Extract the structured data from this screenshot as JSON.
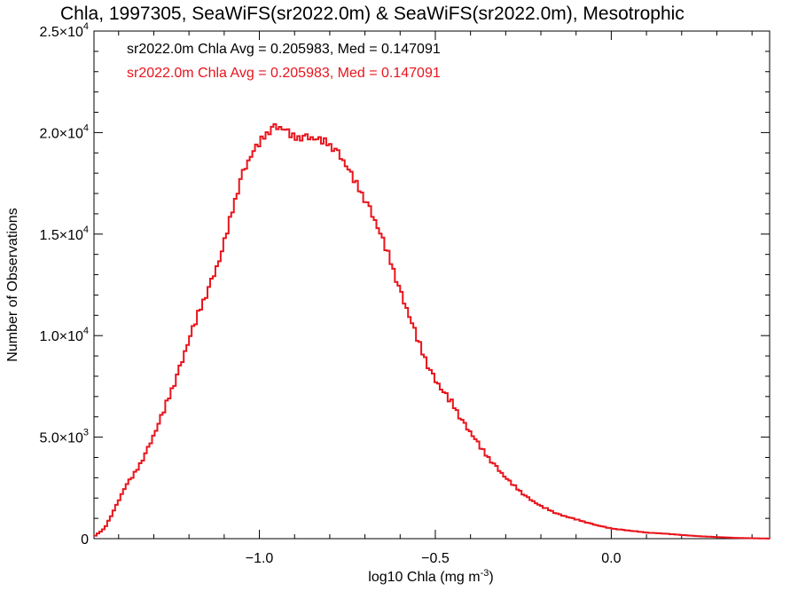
{
  "chart_data": {
    "type": "line",
    "title": "Chla, 1997305, SeaWiFS(sr2022.0m) & SeaWiFS(sr2022.0m), Mesotrophic",
    "xlabel_main": "log10 Chla (mg m",
    "xlabel_sup": "-3",
    "xlabel_end": ")",
    "ylabel": "Number of Observations",
    "xlim": [
      -1.47,
      0.45
    ],
    "ylim": [
      0,
      25000
    ],
    "x_ticks": [
      {
        "value": -1.0,
        "label": "−1.0"
      },
      {
        "value": -0.5,
        "label": "−0.5"
      },
      {
        "value": 0.0,
        "label": "0.0"
      }
    ],
    "y_ticks": [
      {
        "value": 0,
        "mant": "0",
        "exp": ""
      },
      {
        "value": 5000,
        "mant": "5.0×10",
        "exp": "3"
      },
      {
        "value": 10000,
        "mant": "1.0×10",
        "exp": "4"
      },
      {
        "value": 15000,
        "mant": "1.5×10",
        "exp": "4"
      },
      {
        "value": 20000,
        "mant": "2.0×10",
        "exp": "4"
      },
      {
        "value": 25000,
        "mant": "2.5×10",
        "exp": "4"
      }
    ],
    "annotations": [
      {
        "text": "sr2022.0m Chla Avg = 0.205983, Med = 0.147091",
        "color": "#000000"
      },
      {
        "text": "sr2022.0m Chla Avg = 0.205983, Med = 0.147091",
        "color": "#e8141c"
      }
    ],
    "series": [
      {
        "color": "#e8141c",
        "x": [
          -1.47,
          -1.44,
          -1.41,
          -1.38,
          -1.35,
          -1.32,
          -1.29,
          -1.26,
          -1.23,
          -1.2,
          -1.17,
          -1.14,
          -1.11,
          -1.08,
          -1.05,
          -1.02,
          -0.99,
          -0.96,
          -0.93,
          -0.9,
          -0.87,
          -0.84,
          -0.81,
          -0.78,
          -0.75,
          -0.72,
          -0.69,
          -0.66,
          -0.63,
          -0.6,
          -0.57,
          -0.54,
          -0.51,
          -0.48,
          -0.45,
          -0.42,
          -0.39,
          -0.36,
          -0.33,
          -0.3,
          -0.27,
          -0.24,
          -0.2,
          -0.15,
          -0.1,
          -0.05,
          0.0,
          0.05,
          0.1,
          0.15,
          0.2,
          0.25,
          0.3,
          0.35,
          0.4,
          0.45
        ],
        "y": [
          100,
          500,
          1500,
          2600,
          3300,
          4300,
          5500,
          6800,
          8200,
          9800,
          11200,
          12500,
          13900,
          15900,
          17900,
          19000,
          19700,
          20300,
          20200,
          19700,
          19800,
          19700,
          19500,
          19100,
          18300,
          17300,
          16400,
          15200,
          13800,
          12200,
          10800,
          9300,
          8100,
          7300,
          6600,
          5700,
          5000,
          4200,
          3600,
          3000,
          2500,
          2050,
          1600,
          1200,
          950,
          700,
          500,
          400,
          300,
          250,
          180,
          120,
          80,
          40,
          20,
          5
        ]
      }
    ]
  }
}
